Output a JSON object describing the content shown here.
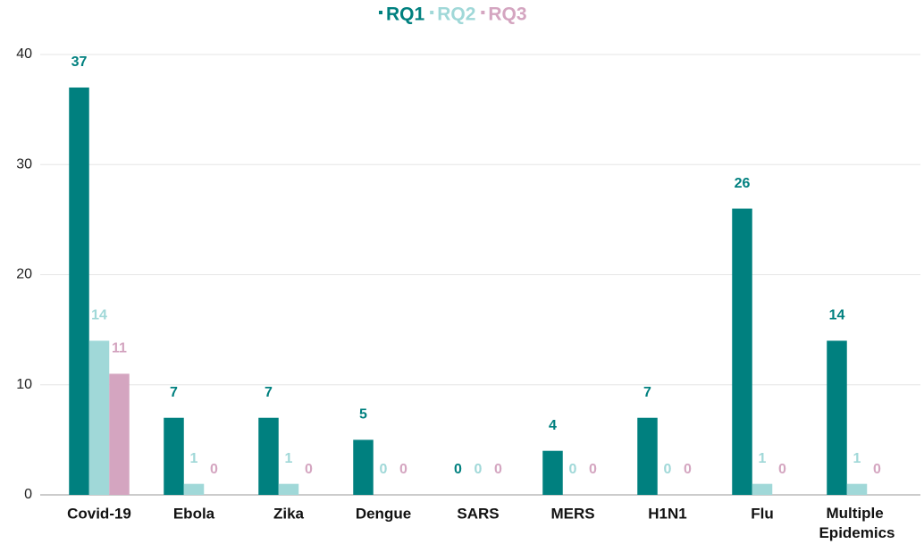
{
  "chart_data": {
    "type": "bar",
    "categories": [
      "Covid-19",
      "Ebola",
      "Zika",
      "Dengue",
      "SARS",
      "MERS",
      "H1N1",
      "Flu",
      "Multiple Epidemics"
    ],
    "series": [
      {
        "name": "RQ1",
        "color": "#00807f",
        "values": [
          37,
          7,
          7,
          5,
          0,
          4,
          7,
          26,
          14
        ]
      },
      {
        "name": "RQ2",
        "color": "#a0d8d8",
        "values": [
          14,
          1,
          1,
          0,
          0,
          0,
          0,
          1,
          1
        ]
      },
      {
        "name": "RQ3",
        "color": "#d4a5c0",
        "values": [
          11,
          0,
          0,
          0,
          0,
          0,
          0,
          0,
          0
        ]
      }
    ],
    "ylim": [
      0,
      40
    ],
    "yticks": [
      0,
      10,
      20,
      30,
      40
    ],
    "grid": true,
    "legend": "top"
  }
}
